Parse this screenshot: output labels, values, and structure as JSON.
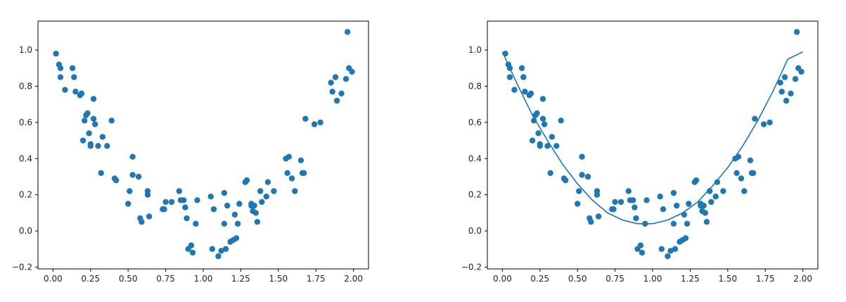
{
  "chart_data": [
    {
      "type": "scatter",
      "title": "",
      "xlabel": "",
      "ylabel": "",
      "xlim": [
        -0.1,
        2.1
      ],
      "ylim": [
        -0.21,
        1.16
      ],
      "xticks": [
        "0.00",
        "0.25",
        "0.50",
        "0.75",
        "1.00",
        "1.25",
        "1.50",
        "1.75",
        "2.00"
      ],
      "yticks": [
        "−0.2",
        "0.0",
        "0.2",
        "0.4",
        "0.6",
        "0.8",
        "1.0"
      ],
      "grid": false,
      "color": "#1f77b4",
      "series": [
        {
          "x": [
            0.02,
            0.04,
            0.05,
            0.05,
            0.08,
            0.13,
            0.14,
            0.15,
            0.18,
            0.19,
            0.2,
            0.21,
            0.22,
            0.23,
            0.24,
            0.25,
            0.25,
            0.27,
            0.27,
            0.28,
            0.3,
            0.32,
            0.33,
            0.36,
            0.39,
            0.41,
            0.42,
            0.5,
            0.51,
            0.53,
            0.53,
            0.57,
            0.58,
            0.59,
            0.63,
            0.63,
            0.64,
            0.73,
            0.74,
            0.75,
            0.79,
            0.84,
            0.85,
            0.87,
            0.88,
            0.89,
            0.9,
            0.92,
            0.93,
            0.95,
            0.96,
            1.05,
            1.06,
            1.07,
            1.1,
            1.12,
            1.14,
            1.14,
            1.15,
            1.16,
            1.18,
            1.2,
            1.21,
            1.22,
            1.23,
            1.24,
            1.28,
            1.29,
            1.32,
            1.32,
            1.33,
            1.34,
            1.35,
            1.36,
            1.38,
            1.39,
            1.42,
            1.43,
            1.47,
            1.55,
            1.56,
            1.57,
            1.59,
            1.61,
            1.65,
            1.66,
            1.67,
            1.68,
            1.74,
            1.78,
            1.85,
            1.86,
            1.88,
            1.89,
            1.92,
            1.95,
            1.96,
            1.97,
            1.99
          ],
          "y": [
            0.98,
            0.92,
            0.9,
            0.85,
            0.78,
            0.9,
            0.85,
            0.77,
            0.75,
            0.76,
            0.5,
            0.61,
            0.64,
            0.65,
            0.54,
            0.48,
            0.47,
            0.73,
            0.62,
            0.59,
            0.47,
            0.32,
            0.52,
            0.47,
            0.61,
            0.29,
            0.28,
            0.15,
            0.22,
            0.41,
            0.31,
            0.3,
            0.07,
            0.05,
            0.22,
            0.2,
            0.08,
            0.12,
            0.12,
            0.16,
            0.16,
            0.22,
            0.17,
            0.17,
            0.13,
            0.07,
            -0.1,
            -0.08,
            -0.12,
            0.04,
            0.17,
            0.19,
            -0.1,
            0.12,
            -0.14,
            -0.11,
            0.21,
            0.04,
            -0.1,
            0.14,
            -0.06,
            -0.05,
            0.09,
            -0.04,
            0.04,
            0.15,
            0.27,
            0.28,
            0.15,
            0.14,
            0.11,
            0.14,
            0.1,
            0.05,
            0.22,
            0.16,
            0.19,
            0.27,
            0.22,
            0.4,
            0.32,
            0.41,
            0.29,
            0.22,
            0.39,
            0.32,
            0.32,
            0.62,
            0.59,
            0.6,
            0.82,
            0.77,
            0.85,
            0.72,
            0.76,
            0.84,
            1.1,
            0.9,
            0.88
          ]
        }
      ]
    },
    {
      "type": "scatter",
      "title": "",
      "xlabel": "",
      "ylabel": "",
      "xlim": [
        -0.1,
        2.1
      ],
      "ylim": [
        -0.21,
        1.16
      ],
      "xticks": [
        "0.00",
        "0.25",
        "0.50",
        "0.75",
        "1.00",
        "1.25",
        "1.50",
        "1.75",
        "2.00"
      ],
      "yticks": [
        "−0.2",
        "0.0",
        "0.2",
        "0.4",
        "0.6",
        "0.8",
        "1.0"
      ],
      "grid": false,
      "color": "#1f77b4",
      "series": [
        {
          "x": [
            0.02,
            0.04,
            0.05,
            0.05,
            0.08,
            0.13,
            0.14,
            0.15,
            0.18,
            0.19,
            0.2,
            0.21,
            0.22,
            0.23,
            0.24,
            0.25,
            0.25,
            0.27,
            0.27,
            0.28,
            0.3,
            0.32,
            0.33,
            0.36,
            0.39,
            0.41,
            0.42,
            0.5,
            0.51,
            0.53,
            0.53,
            0.57,
            0.58,
            0.59,
            0.63,
            0.63,
            0.64,
            0.73,
            0.74,
            0.75,
            0.79,
            0.84,
            0.85,
            0.87,
            0.88,
            0.89,
            0.9,
            0.92,
            0.93,
            0.95,
            0.96,
            1.05,
            1.06,
            1.07,
            1.1,
            1.12,
            1.14,
            1.14,
            1.15,
            1.16,
            1.18,
            1.2,
            1.21,
            1.22,
            1.23,
            1.24,
            1.28,
            1.29,
            1.32,
            1.32,
            1.33,
            1.34,
            1.35,
            1.36,
            1.38,
            1.39,
            1.42,
            1.43,
            1.47,
            1.55,
            1.56,
            1.57,
            1.59,
            1.61,
            1.65,
            1.66,
            1.67,
            1.68,
            1.74,
            1.78,
            1.85,
            1.86,
            1.88,
            1.89,
            1.92,
            1.95,
            1.96,
            1.97,
            1.99
          ],
          "y": [
            0.98,
            0.92,
            0.9,
            0.85,
            0.78,
            0.9,
            0.85,
            0.77,
            0.75,
            0.76,
            0.5,
            0.61,
            0.64,
            0.65,
            0.54,
            0.48,
            0.47,
            0.73,
            0.62,
            0.59,
            0.47,
            0.32,
            0.52,
            0.47,
            0.61,
            0.29,
            0.28,
            0.15,
            0.22,
            0.41,
            0.31,
            0.3,
            0.07,
            0.05,
            0.22,
            0.2,
            0.08,
            0.12,
            0.12,
            0.16,
            0.16,
            0.22,
            0.17,
            0.17,
            0.13,
            0.07,
            -0.1,
            -0.08,
            -0.12,
            0.04,
            0.17,
            0.19,
            -0.1,
            0.12,
            -0.14,
            -0.11,
            0.21,
            0.04,
            -0.1,
            0.14,
            -0.06,
            -0.05,
            0.09,
            -0.04,
            0.04,
            0.15,
            0.27,
            0.28,
            0.15,
            0.14,
            0.11,
            0.14,
            0.1,
            0.05,
            0.22,
            0.16,
            0.19,
            0.27,
            0.22,
            0.4,
            0.32,
            0.41,
            0.29,
            0.22,
            0.39,
            0.32,
            0.32,
            0.62,
            0.59,
            0.6,
            0.82,
            0.77,
            0.85,
            0.72,
            0.76,
            0.84,
            1.1,
            0.9,
            0.88
          ]
        },
        {
          "type": "line",
          "x": [
            0.0,
            0.1,
            0.2,
            0.3,
            0.4,
            0.5,
            0.6,
            0.7,
            0.8,
            0.9,
            1.0,
            1.1,
            1.2,
            1.3,
            1.4,
            1.5,
            1.6,
            1.7,
            1.8,
            1.9,
            2.0
          ],
          "y": [
            0.99,
            0.81,
            0.64,
            0.5,
            0.37,
            0.26,
            0.17,
            0.1,
            0.06,
            0.04,
            0.04,
            0.06,
            0.1,
            0.16,
            0.25,
            0.35,
            0.47,
            0.61,
            0.77,
            0.95,
            0.99
          ]
        }
      ]
    }
  ]
}
